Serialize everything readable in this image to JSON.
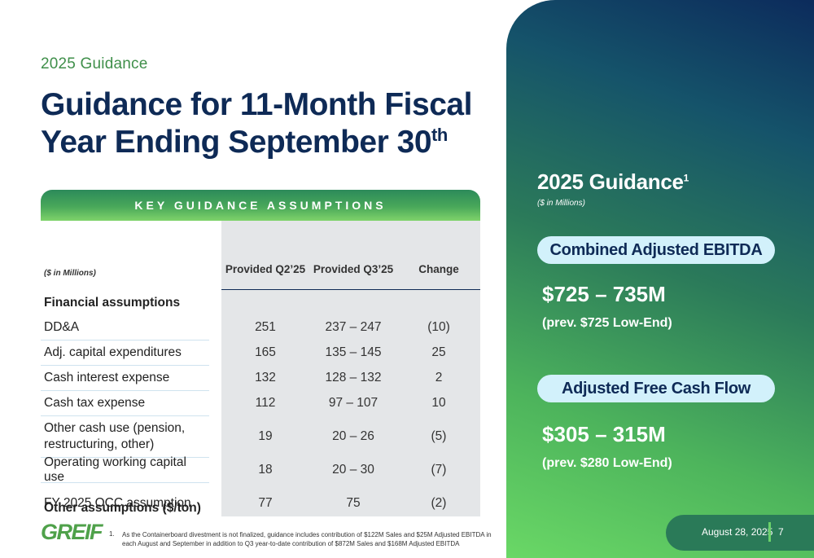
{
  "kicker": "2025 Guidance",
  "title_main": "Guidance for 11-Month Fiscal Year Ending September 30",
  "title_sup": "th",
  "table": {
    "header": "KEY GUIDANCE ASSUMPTIONS",
    "units": "($ in Millions)",
    "columns": [
      "Provided Q2’25",
      "Provided Q3’25",
      "Change"
    ],
    "section1": "Financial assumptions",
    "rows": [
      {
        "label": "DD&A",
        "q2": "251",
        "q3": "237 – 247",
        "change": "(10)"
      },
      {
        "label": "Adj. capital expenditures",
        "q2": "165",
        "q3": "135 – 145",
        "change": "25"
      },
      {
        "label": "Cash interest expense",
        "q2": "132",
        "q3": "128 – 132",
        "change": "2"
      },
      {
        "label": "Cash tax expense",
        "q2": "112",
        "q3": "97 – 107",
        "change": "10"
      },
      {
        "label": "Other cash use (pension, restructuring, other)",
        "q2": "19",
        "q3": "20 – 26",
        "change": "(5)"
      },
      {
        "label": "Operating working capital use",
        "q2": "18",
        "q3": "20 – 30",
        "change": "(7)"
      }
    ],
    "section2": "Other assumptions ($/ton)",
    "row_occ": {
      "label": "FY 2025 OCC assumption",
      "q2": "77",
      "q3": "75",
      "change": "(2)"
    }
  },
  "footnote": {
    "number": "1.",
    "text": "As the Containerboard divestment is not finalized, guidance includes contribution of $122M Sales and $25M Adjusted EBITDA in each August and September in addition to Q3 year-to-date contribution of $872M Sales and $168M Adjusted EBITDA"
  },
  "logo": "GREIF",
  "panel": {
    "title": "2025 Guidance",
    "title_sup": "1",
    "subtitle": "($ in Millions)",
    "ebitda_pill": "Combined Adjusted EBITDA",
    "ebitda_value": "$725 – 735M",
    "ebitda_prev": "(prev. $725 Low-End)",
    "fcf_pill": "Adjusted Free Cash Flow",
    "fcf_value": "$305 – 315M",
    "fcf_prev": "(prev. $280 Low-End)"
  },
  "footer": {
    "date": "August 28, 2025",
    "page": "7"
  },
  "colors": {
    "navy": "#0e2a56",
    "green": "#4fa14a",
    "pill": "#d2f1fb"
  }
}
